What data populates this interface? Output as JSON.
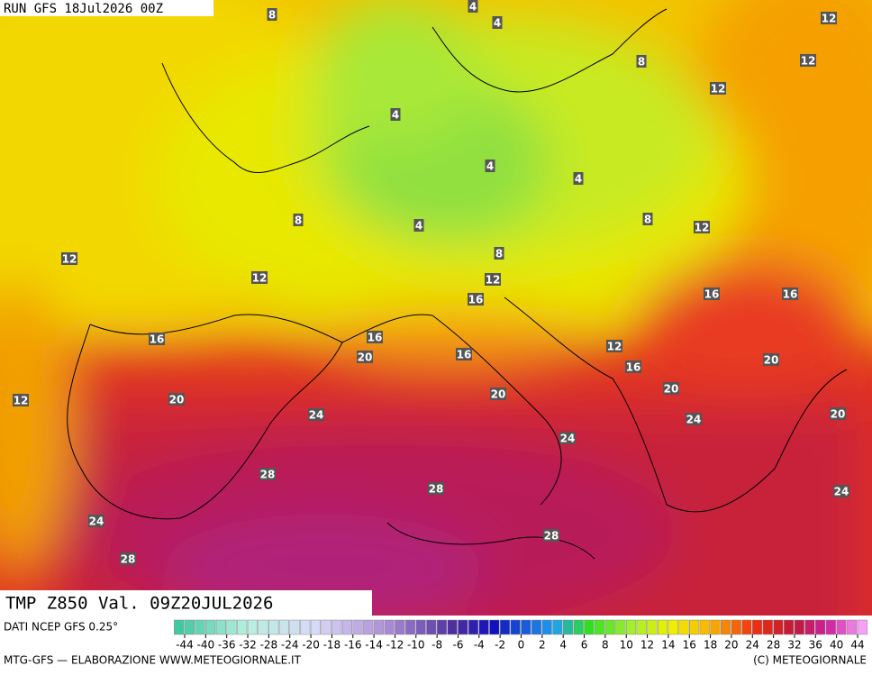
{
  "header": {
    "run": "RUN GFS 18Jul2026 00Z"
  },
  "map": {
    "title": "TMP Z850 Val. 09Z20JUL2026",
    "contour_labels": [
      8,
      4,
      4,
      12,
      8,
      12,
      12,
      4,
      4,
      4,
      8,
      4,
      8,
      12,
      8,
      12,
      12,
      12,
      16,
      16,
      16,
      16,
      16,
      12,
      20,
      16,
      16,
      20,
      12,
      20,
      20,
      20,
      24,
      24,
      20,
      24,
      28,
      28,
      24,
      24,
      28,
      28
    ]
  },
  "colorbar": {
    "ticks": [
      -44,
      -40,
      -36,
      -32,
      -28,
      -24,
      -20,
      -18,
      -16,
      -14,
      -12,
      -10,
      -8,
      -6,
      -4,
      -2,
      0,
      2,
      4,
      6,
      8,
      10,
      12,
      14,
      16,
      18,
      20,
      24,
      28,
      32,
      36,
      40,
      44
    ]
  },
  "footer": {
    "source": "DATI NCEP GFS 0.25°",
    "credit": "MTG-GFS — ELABORAZIONE WWW.METEOGIORNALE.IT",
    "copyright": "(C) METEOGIORNALE"
  }
}
